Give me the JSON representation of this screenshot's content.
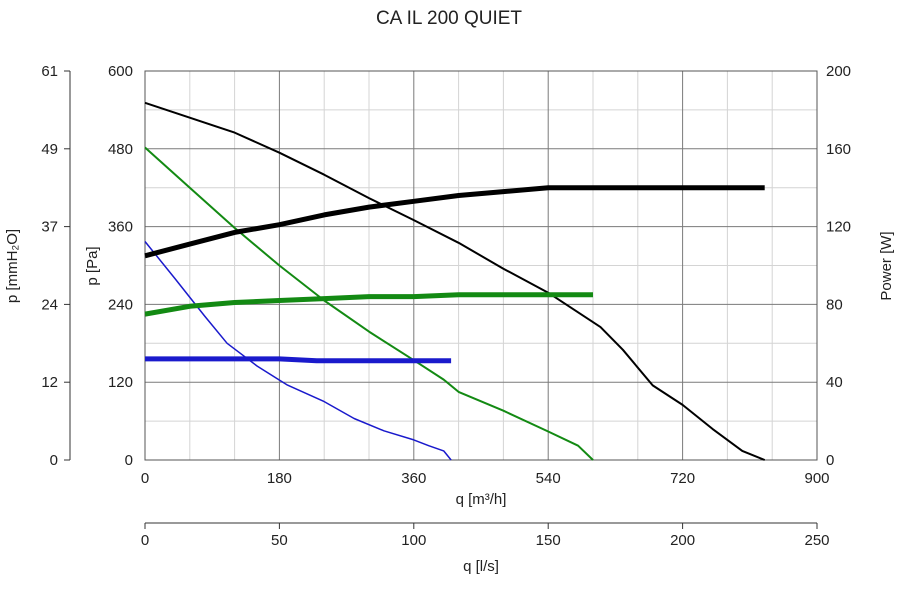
{
  "chart_data": {
    "type": "line",
    "title": "CA IL 200 QUIET",
    "grid": true,
    "x_axis": {
      "label": "q [m³/h]",
      "range": [
        0,
        900
      ],
      "ticks": [
        "0",
        "180",
        "360",
        "540",
        "720",
        "900"
      ]
    },
    "x2_axis": {
      "label": "q [l/s]",
      "range": [
        0,
        250
      ],
      "ticks": [
        "0",
        "50",
        "100",
        "150",
        "200",
        "250"
      ]
    },
    "y_axis": {
      "label": "p [Pa]",
      "range": [
        0,
        600
      ],
      "ticks": [
        "0",
        "120",
        "240",
        "360",
        "480",
        "600"
      ]
    },
    "y_outer_axis": {
      "label": "p [mmH₂O]",
      "range": [
        0,
        61.2
      ],
      "ticks": [
        "0",
        "12",
        "24",
        "37",
        "49",
        "61"
      ]
    },
    "y_right_axis": {
      "label": "Power [W]",
      "range": [
        0,
        200
      ],
      "ticks": [
        "0",
        "40",
        "80",
        "120",
        "160",
        "200"
      ]
    },
    "series": [
      {
        "axis": "pressure",
        "color": "#000000",
        "width": 2,
        "points": [
          [
            0,
            551
          ],
          [
            60,
            528
          ],
          [
            120,
            505
          ],
          [
            180,
            474
          ],
          [
            240,
            440
          ],
          [
            300,
            404
          ],
          [
            360,
            370
          ],
          [
            420,
            335
          ],
          [
            480,
            295
          ],
          [
            540,
            258
          ],
          [
            610,
            205
          ],
          [
            640,
            170
          ],
          [
            680,
            115
          ],
          [
            720,
            85
          ],
          [
            760,
            48
          ],
          [
            800,
            14
          ],
          [
            830,
            0
          ]
        ]
      },
      {
        "axis": "pressure",
        "color": "#138a13",
        "width": 2,
        "points": [
          [
            0,
            482
          ],
          [
            60,
            420
          ],
          [
            120,
            358
          ],
          [
            180,
            300
          ],
          [
            240,
            246
          ],
          [
            300,
            198
          ],
          [
            360,
            154
          ],
          [
            400,
            124
          ],
          [
            420,
            105
          ],
          [
            480,
            76
          ],
          [
            540,
            44
          ],
          [
            580,
            22
          ],
          [
            600,
            0
          ]
        ]
      },
      {
        "axis": "pressure",
        "color": "#1a1acc",
        "width": 1.5,
        "points": [
          [
            0,
            337
          ],
          [
            40,
            280
          ],
          [
            80,
            222
          ],
          [
            110,
            180
          ],
          [
            150,
            145
          ],
          [
            190,
            116
          ],
          [
            240,
            90
          ],
          [
            280,
            64
          ],
          [
            320,
            45
          ],
          [
            360,
            31
          ],
          [
            380,
            22
          ],
          [
            400,
            14
          ],
          [
            410,
            0
          ]
        ]
      },
      {
        "axis": "power",
        "color": "#000000",
        "width": 5,
        "points": [
          [
            0,
            105
          ],
          [
            60,
            111
          ],
          [
            120,
            117
          ],
          [
            180,
            121
          ],
          [
            240,
            126
          ],
          [
            300,
            130
          ],
          [
            360,
            133
          ],
          [
            420,
            136
          ],
          [
            480,
            138
          ],
          [
            540,
            140
          ],
          [
            600,
            140
          ],
          [
            700,
            140
          ],
          [
            830,
            140
          ]
        ]
      },
      {
        "axis": "power",
        "color": "#138a13",
        "width": 5,
        "points": [
          [
            0,
            75
          ],
          [
            60,
            79
          ],
          [
            120,
            81
          ],
          [
            180,
            82
          ],
          [
            240,
            83
          ],
          [
            300,
            84
          ],
          [
            360,
            84
          ],
          [
            420,
            85
          ],
          [
            480,
            85
          ],
          [
            540,
            85
          ],
          [
            600,
            85
          ]
        ]
      },
      {
        "axis": "power",
        "color": "#1a1acc",
        "width": 5,
        "points": [
          [
            0,
            52
          ],
          [
            100,
            52
          ],
          [
            180,
            52
          ],
          [
            230,
            51
          ],
          [
            300,
            51
          ],
          [
            360,
            51
          ],
          [
            410,
            51
          ]
        ]
      }
    ]
  }
}
